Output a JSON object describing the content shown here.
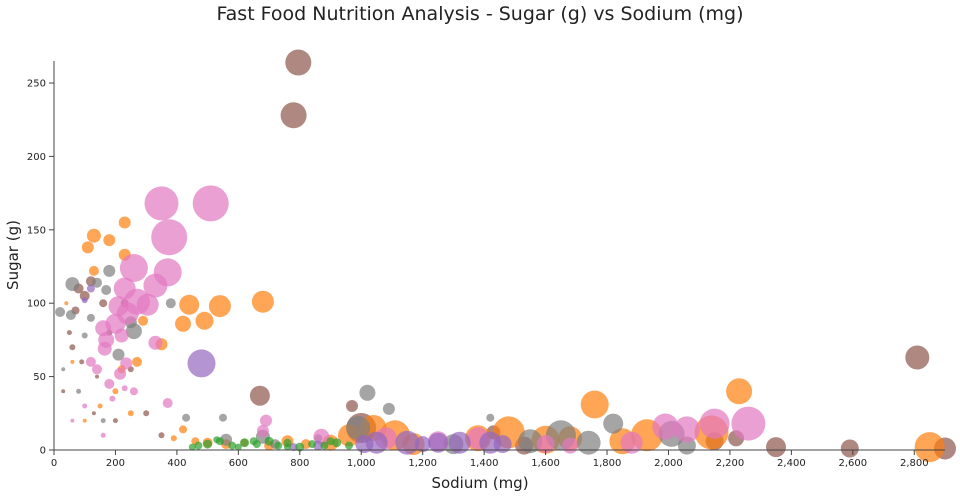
{
  "chart_data": {
    "type": "scatter",
    "title": "Fast Food Nutrition Analysis - Sugar (g) vs Sodium (mg)",
    "xlabel": "Sodium (mg)",
    "ylabel": "Sugar (g)",
    "xlim": [
      0,
      2900
    ],
    "ylim": [
      0,
      265
    ],
    "xticks": [
      0,
      200,
      400,
      600,
      800,
      1000,
      1200,
      1400,
      1600,
      1800,
      2000,
      2200,
      2400,
      2600,
      2800
    ],
    "xtick_labels": [
      "0",
      "200",
      "400",
      "600",
      "800",
      "1,000",
      "1,200",
      "1,400",
      "1,600",
      "1,800",
      "2,000",
      "2,200",
      "2,400",
      "2,600",
      "2,800"
    ],
    "yticks": [
      0,
      50,
      100,
      150,
      200,
      250
    ],
    "ytick_labels": [
      "0",
      "50",
      "100",
      "150",
      "200",
      "250"
    ],
    "grid": false,
    "bubble_size_encoding": true,
    "series": [
      {
        "color": "#8c564b",
        "points": [
          [
            795,
            264,
            26
          ],
          [
            780,
            228,
            26
          ],
          [
            2810,
            63,
            24
          ],
          [
            670,
            37,
            20
          ],
          [
            2900,
            1,
            22
          ],
          [
            2350,
            2,
            20
          ],
          [
            2590,
            1,
            18
          ],
          [
            2220,
            8,
            16
          ],
          [
            2150,
            6,
            18
          ],
          [
            1530,
            3,
            18
          ],
          [
            1000,
            15,
            30
          ],
          [
            970,
            30,
            12
          ],
          [
            1430,
            12,
            14
          ],
          [
            80,
            110,
            10
          ],
          [
            100,
            105,
            10
          ],
          [
            120,
            115,
            10
          ],
          [
            70,
            95,
            8
          ],
          [
            60,
            70,
            6
          ],
          [
            160,
            100,
            8
          ],
          [
            180,
            80,
            6
          ],
          [
            90,
            60,
            5
          ],
          [
            30,
            40,
            4
          ],
          [
            130,
            25,
            4
          ],
          [
            200,
            20,
            5
          ],
          [
            230,
            100,
            8
          ],
          [
            250,
            55,
            6
          ],
          [
            50,
            80,
            5
          ],
          [
            140,
            50,
            4
          ],
          [
            300,
            25,
            6
          ],
          [
            350,
            10,
            6
          ]
        ]
      },
      {
        "color": "#ff7f0e",
        "points": [
          [
            2850,
            2,
            30
          ],
          [
            2230,
            40,
            26
          ],
          [
            2140,
            12,
            34
          ],
          [
            1760,
            31,
            28
          ],
          [
            1930,
            10,
            32
          ],
          [
            1850,
            6,
            26
          ],
          [
            1680,
            8,
            24
          ],
          [
            1600,
            7,
            28
          ],
          [
            1480,
            12,
            32
          ],
          [
            1380,
            8,
            26
          ],
          [
            1110,
            10,
            30
          ],
          [
            1170,
            4,
            22
          ],
          [
            1040,
            15,
            26
          ],
          [
            960,
            10,
            22
          ],
          [
            900,
            5,
            16
          ],
          [
            680,
            101,
            22
          ],
          [
            540,
            98,
            22
          ],
          [
            490,
            88,
            18
          ],
          [
            440,
            99,
            20
          ],
          [
            420,
            86,
            16
          ],
          [
            350,
            72,
            12
          ],
          [
            230,
            155,
            12
          ],
          [
            130,
            146,
            14
          ],
          [
            110,
            138,
            12
          ],
          [
            180,
            143,
            12
          ],
          [
            230,
            133,
            12
          ],
          [
            130,
            122,
            10
          ],
          [
            290,
            88,
            10
          ],
          [
            270,
            60,
            10
          ],
          [
            220,
            55,
            8
          ],
          [
            200,
            40,
            6
          ],
          [
            250,
            25,
            6
          ],
          [
            150,
            30,
            5
          ],
          [
            100,
            20,
            4
          ],
          [
            420,
            14,
            8
          ],
          [
            390,
            8,
            6
          ],
          [
            460,
            6,
            8
          ],
          [
            500,
            5,
            10
          ],
          [
            560,
            4,
            10
          ],
          [
            620,
            5,
            8
          ],
          [
            700,
            3,
            10
          ],
          [
            760,
            6,
            12
          ],
          [
            820,
            4,
            10
          ],
          [
            60,
            60,
            4
          ],
          [
            40,
            100,
            4
          ]
        ]
      },
      {
        "color": "#7f7f7f",
        "points": [
          [
            2010,
            11,
            26
          ],
          [
            1820,
            18,
            20
          ],
          [
            1650,
            10,
            30
          ],
          [
            1550,
            6,
            24
          ],
          [
            1420,
            22,
            8
          ],
          [
            1090,
            28,
            12
          ],
          [
            1020,
            39,
            16
          ],
          [
            990,
            15,
            24
          ],
          [
            680,
            9,
            14
          ],
          [
            560,
            7,
            12
          ],
          [
            550,
            22,
            8
          ],
          [
            60,
            113,
            14
          ],
          [
            55,
            92,
            10
          ],
          [
            20,
            94,
            10
          ],
          [
            180,
            122,
            12
          ],
          [
            170,
            109,
            10
          ],
          [
            140,
            114,
            10
          ],
          [
            260,
            81,
            16
          ],
          [
            250,
            87,
            12
          ],
          [
            210,
            65,
            12
          ],
          [
            120,
            90,
            8
          ],
          [
            100,
            78,
            6
          ],
          [
            380,
            100,
            10
          ],
          [
            430,
            22,
            8
          ],
          [
            720,
            4,
            10
          ],
          [
            860,
            8,
            8
          ],
          [
            1300,
            4,
            20
          ],
          [
            1740,
            5,
            24
          ],
          [
            2060,
            3,
            18
          ],
          [
            80,
            40,
            5
          ],
          [
            30,
            55,
            4
          ],
          [
            160,
            20,
            5
          ]
        ]
      },
      {
        "color": "#e377c2",
        "points": [
          [
            2260,
            18,
            34
          ],
          [
            2150,
            18,
            30
          ],
          [
            1990,
            16,
            26
          ],
          [
            2060,
            14,
            26
          ],
          [
            1880,
            5,
            22
          ],
          [
            1380,
            8,
            22
          ],
          [
            1250,
            6,
            20
          ],
          [
            1080,
            8,
            22
          ],
          [
            870,
            9,
            16
          ],
          [
            690,
            20,
            12
          ],
          [
            680,
            13,
            12
          ],
          [
            510,
            168,
            36
          ],
          [
            350,
            168,
            34
          ],
          [
            375,
            145,
            36
          ],
          [
            370,
            121,
            28
          ],
          [
            260,
            124,
            28
          ],
          [
            330,
            112,
            24
          ],
          [
            230,
            110,
            22
          ],
          [
            210,
            98,
            20
          ],
          [
            270,
            101,
            26
          ],
          [
            305,
            99,
            22
          ],
          [
            240,
            93,
            22
          ],
          [
            200,
            86,
            20
          ],
          [
            170,
            75,
            16
          ],
          [
            160,
            83,
            16
          ],
          [
            165,
            69,
            14
          ],
          [
            220,
            78,
            14
          ],
          [
            235,
            59,
            12
          ],
          [
            215,
            52,
            12
          ],
          [
            180,
            45,
            10
          ],
          [
            140,
            55,
            10
          ],
          [
            120,
            60,
            10
          ],
          [
            330,
            73,
            14
          ],
          [
            370,
            32,
            10
          ],
          [
            260,
            40,
            8
          ],
          [
            160,
            10,
            5
          ],
          [
            100,
            30,
            5
          ],
          [
            60,
            20,
            4
          ],
          [
            190,
            35,
            6
          ],
          [
            1600,
            4,
            18
          ],
          [
            1680,
            3,
            16
          ],
          [
            230,
            42,
            6
          ]
        ]
      },
      {
        "color": "#9467bd",
        "points": [
          [
            480,
            59,
            28
          ],
          [
            1050,
            5,
            22
          ],
          [
            1150,
            5,
            24
          ],
          [
            1250,
            5,
            20
          ],
          [
            1320,
            5,
            22
          ],
          [
            1420,
            5,
            22
          ],
          [
            1460,
            4,
            18
          ],
          [
            1010,
            4,
            18
          ],
          [
            1200,
            4,
            16
          ],
          [
            120,
            110,
            8
          ],
          [
            100,
            102,
            6
          ],
          [
            860,
            3,
            10
          ],
          [
            780,
            2,
            8
          ]
        ]
      },
      {
        "color": "#2ca02c",
        "points": [
          [
            500,
            4,
            9
          ],
          [
            540,
            6,
            8
          ],
          [
            580,
            3,
            8
          ],
          [
            620,
            5,
            9
          ],
          [
            660,
            4,
            8
          ],
          [
            700,
            6,
            9
          ],
          [
            730,
            3,
            8
          ],
          [
            760,
            5,
            8
          ],
          [
            800,
            2,
            9
          ],
          [
            840,
            4,
            8
          ],
          [
            880,
            3,
            8
          ],
          [
            920,
            5,
            9
          ],
          [
            960,
            3,
            8
          ],
          [
            470,
            3,
            8
          ],
          [
            450,
            2,
            7
          ],
          [
            600,
            2,
            7
          ],
          [
            650,
            6,
            8
          ],
          [
            760,
            2,
            7
          ],
          [
            530,
            7,
            7
          ],
          [
            900,
            6,
            8
          ]
        ]
      }
    ]
  }
}
